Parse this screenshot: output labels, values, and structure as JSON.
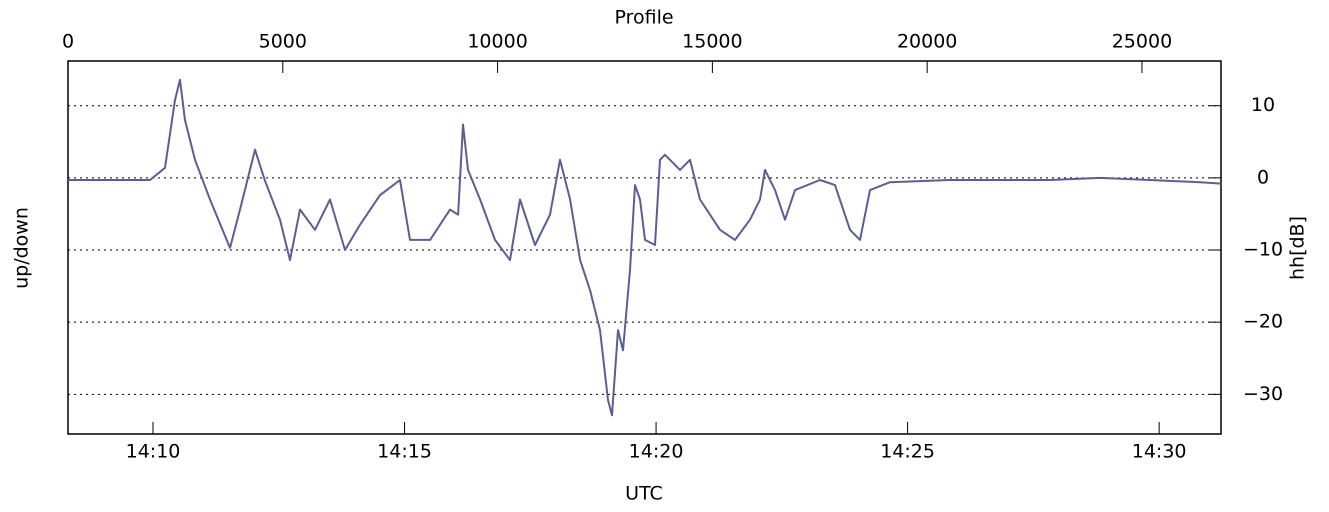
{
  "chart_data": {
    "type": "line",
    "x_label_top": "Profile",
    "x_label_bottom": "UTC",
    "y_label_left": "up/down",
    "y_label_right": "hh[dB]",
    "xlim": [
      0,
      26840
    ],
    "xticks": [
      0,
      5000,
      10000,
      15000,
      20000,
      25000
    ],
    "x2lim": [
      848.31,
      871.23
    ],
    "x2ticks": [
      {
        "value": 850,
        "label": "14:10"
      },
      {
        "value": 855,
        "label": "14:15"
      },
      {
        "value": 860,
        "label": "14:20"
      },
      {
        "value": 865,
        "label": "14:25"
      },
      {
        "value": 870,
        "label": "14:30"
      }
    ],
    "ylim": [
      -35.5,
      16.2
    ],
    "yticks": [
      {
        "value": -30,
        "label": "−30"
      },
      {
        "value": -20,
        "label": "−20"
      },
      {
        "value": -10,
        "label": "−10"
      },
      0,
      10
    ],
    "grid": true,
    "series": [
      {
        "color": "#5b5e96",
        "x": [
          0,
          1909,
          2258,
          2491,
          2607,
          2724,
          2957,
          3306,
          3771,
          4004,
          4353,
          4586,
          4935,
          5168,
          5401,
          5750,
          6099,
          6448,
          6797,
          7263,
          7729,
          7962,
          8428,
          8893,
          9080,
          9196,
          9312,
          9592,
          9941,
          10290,
          10523,
          10872,
          11221,
          11454,
          11687,
          11920,
          12153,
          12385,
          12571,
          12664,
          12804,
          12920,
          13083,
          13199,
          13316,
          13432,
          13665,
          13781,
          13897,
          14246,
          14479,
          14712,
          15178,
          15527,
          15876,
          16109,
          16225,
          16458,
          16690,
          16923,
          17505,
          17854,
          18204,
          18437,
          18670,
          19136,
          20532,
          22861,
          24025,
          25189,
          26353,
          26840
        ],
        "values": [
          -0.3,
          -0.3,
          1.4,
          10.8,
          13.6,
          8,
          2.5,
          -3,
          -9.7,
          -4.4,
          3.9,
          -0.4,
          -5.8,
          -11.4,
          -4.4,
          -7.2,
          -3,
          -10,
          -6.5,
          -2.4,
          -0.3,
          -8.6,
          -8.6,
          -4.4,
          -5.1,
          7.4,
          1.1,
          -3,
          -8.6,
          -11.4,
          -3,
          -9.3,
          -5.1,
          2.5,
          -3,
          -11.4,
          -15.6,
          -21.1,
          -30.8,
          -32.9,
          -21.1,
          -23.9,
          -12.8,
          -1,
          -3,
          -8.6,
          -9.3,
          2.5,
          3.2,
          1.1,
          2.5,
          -3,
          -7.2,
          -8.6,
          -5.8,
          -3,
          1.1,
          -1.7,
          -5.8,
          -1.7,
          -0.3,
          -1,
          -7.2,
          -8.6,
          -1.7,
          -0.6,
          -0.3,
          -0.3,
          0,
          -0.3,
          -0.6,
          -0.8
        ]
      }
    ]
  }
}
